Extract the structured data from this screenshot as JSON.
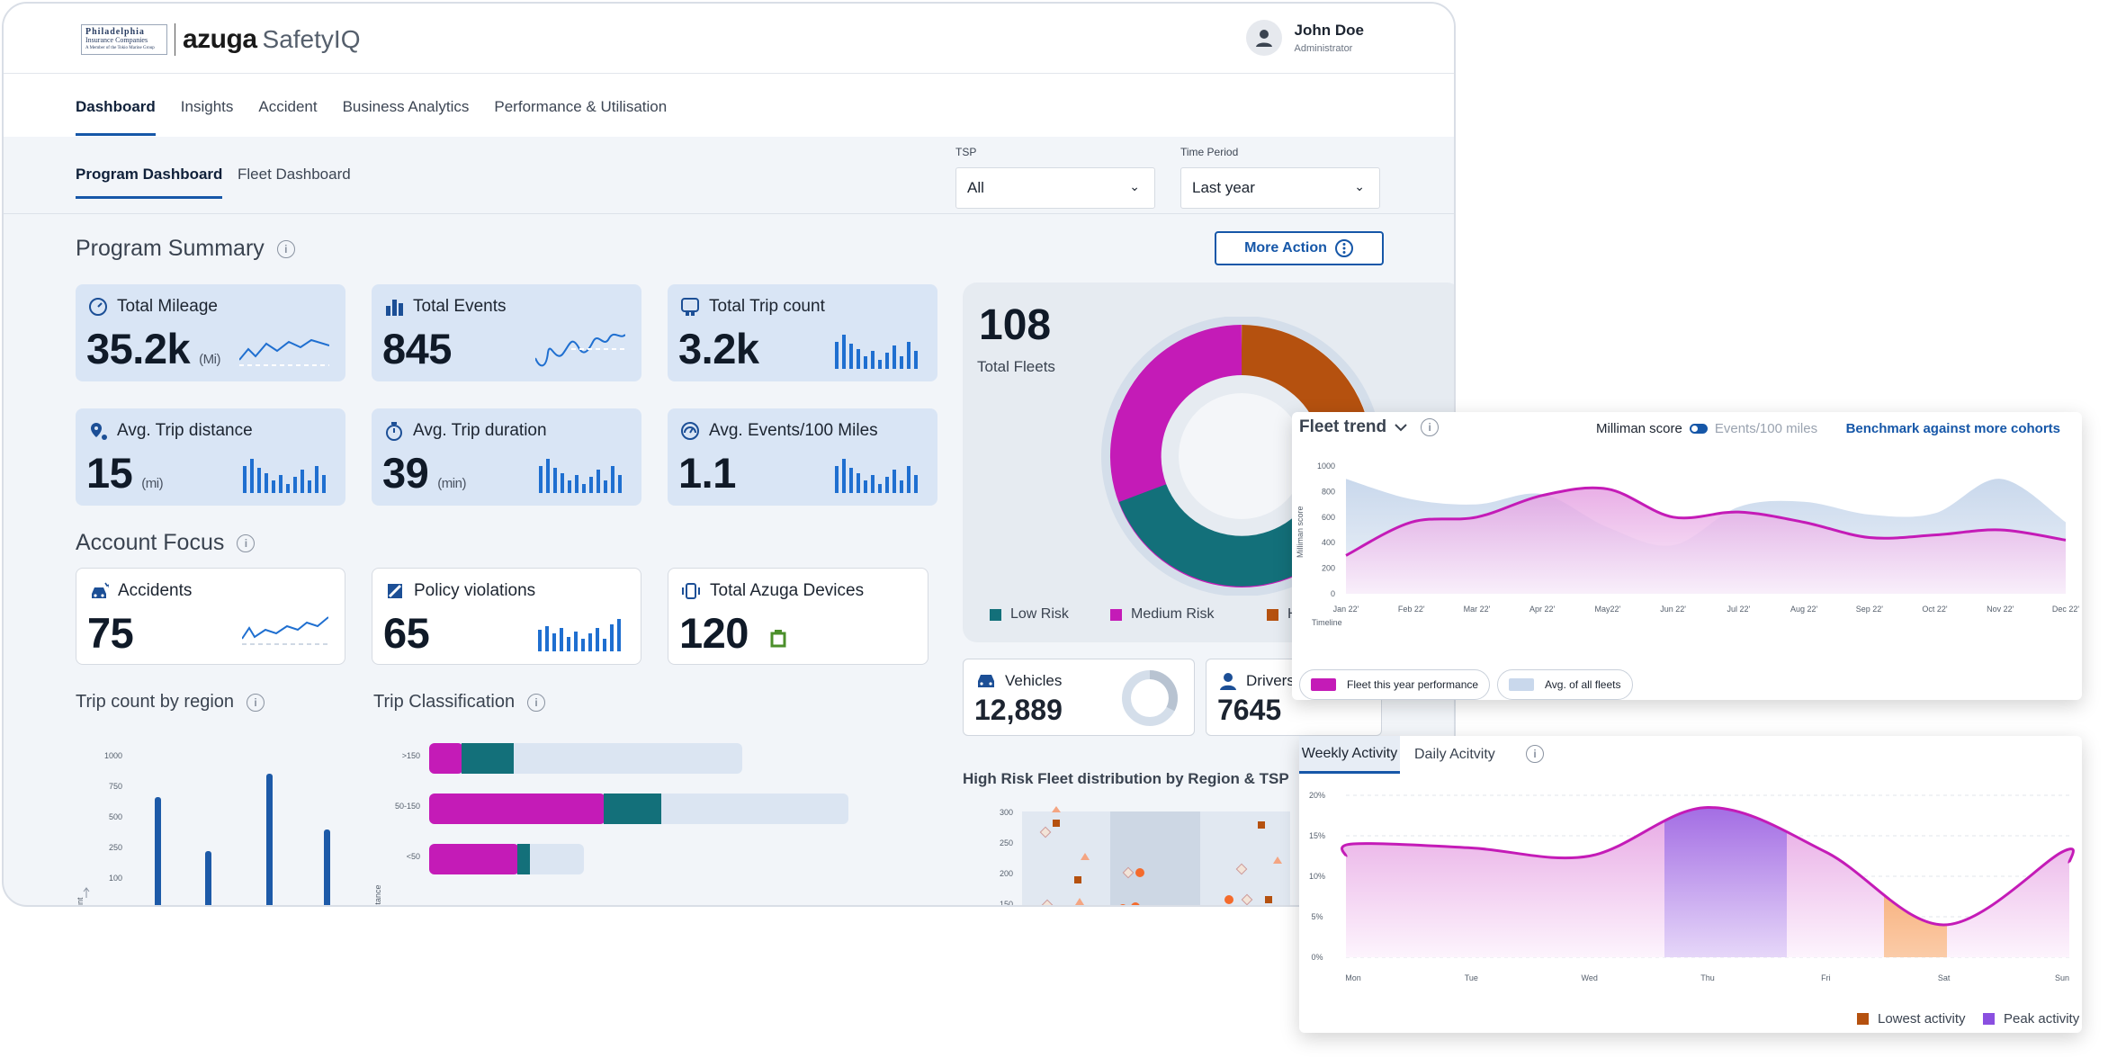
{
  "brand": {
    "partner_line1": "Philadelphia",
    "partner_line2": "Insurance Companies",
    "partner_line3": "A Member of the Tokio Marine Group",
    "azuga": "azuga",
    "product": "SafetyIQ"
  },
  "user": {
    "name": "John Doe",
    "role": "Administrator"
  },
  "main_tabs": [
    "Dashboard",
    "Insights",
    "Accident",
    "Business Analytics",
    "Performance & Utilisation"
  ],
  "sub_tabs": [
    "Program Dashboard",
    "Fleet Dashboard"
  ],
  "filters": {
    "tsp_label": "TSP",
    "tsp_value": "All",
    "period_label": "Time Period",
    "period_value": "Last year"
  },
  "program_summary": {
    "title": "Program Summary",
    "more_action": "More Action",
    "cards": [
      {
        "label": "Total Mileage",
        "value": "35.2k",
        "unit": "(Mi)",
        "icon": "gauge-icon"
      },
      {
        "label": "Total Events",
        "value": "845",
        "unit": "",
        "icon": "bar-chart-icon"
      },
      {
        "label": "Total Trip count",
        "value": "3.2k",
        "unit": "",
        "icon": "trip-icon"
      },
      {
        "label": "Avg. Trip distance",
        "value": "15",
        "unit": "(mi)",
        "icon": "location-pin-icon"
      },
      {
        "label": "Avg. Trip duration",
        "value": "39",
        "unit": "(min)",
        "icon": "stopwatch-icon"
      },
      {
        "label": "Avg. Events/100 Miles",
        "value": "1.1",
        "unit": "",
        "icon": "speedometer-icon"
      }
    ]
  },
  "account_focus": {
    "title": "Account Focus",
    "cards": [
      {
        "label": "Accidents",
        "value": "75",
        "icon": "car-crash-icon"
      },
      {
        "label": "Policy violations",
        "value": "65",
        "icon": "policy-icon"
      },
      {
        "label": "Total Azuga Devices",
        "value": "120",
        "icon": "device-icon"
      }
    ]
  },
  "fleet_risk": {
    "total": "108",
    "total_label": "Total Fleets",
    "legend": [
      "Low Risk",
      "Medium Risk",
      "H"
    ],
    "colors": {
      "low": "#13707a",
      "medium": "#c41bb7",
      "high": "#b5510f"
    }
  },
  "vehicles": {
    "label": "Vehicles",
    "value": "12,889"
  },
  "drivers": {
    "label": "Drivers",
    "value": "7645"
  },
  "trip_region": {
    "title": "Trip count by region",
    "yticks": [
      "1000",
      "750",
      "500",
      "250",
      "100",
      "0"
    ],
    "axis_label": "unt"
  },
  "trip_class": {
    "title": "Trip Classification",
    "cats": [
      ">150",
      "50-150",
      "<50"
    ],
    "axis_label": "stance"
  },
  "high_risk": {
    "title": "High Risk Fleet distribution by Region & TSP",
    "yticks": [
      "300",
      "250",
      "200",
      "150"
    ]
  },
  "fleet_trend": {
    "title": "Fleet trend",
    "toggle_on": "Milliman score",
    "toggle_off": "Events/100 miles",
    "benchmark": "Benchmark against more cohorts",
    "y_label": "Milliman score",
    "x_label": "Timeline",
    "legend_this": "Fleet this year performance",
    "legend_avg": "Avg. of all fleets",
    "chart_data": {
      "type": "line",
      "x": [
        "Jan 22'",
        "Feb 22'",
        "Mar 22'",
        "Apr 22'",
        "May22'",
        "Jun 22'",
        "Jul 22'",
        "Aug 22'",
        "Sep 22'",
        "Oct 22'",
        "Nov 22'",
        "Dec 22'"
      ],
      "yticks": [
        "1000",
        "800",
        "600",
        "400",
        "200",
        "0"
      ],
      "ylim": [
        0,
        1000
      ],
      "series": [
        {
          "name": "Fleet this year performance",
          "values": [
            300,
            560,
            600,
            770,
            820,
            600,
            640,
            560,
            440,
            460,
            500,
            420
          ]
        },
        {
          "name": "Avg. of all fleets",
          "values": [
            900,
            740,
            700,
            780,
            520,
            380,
            680,
            720,
            620,
            630,
            900,
            560
          ]
        }
      ]
    }
  },
  "weekly": {
    "tabs": [
      "Weekly Activity",
      "Daily Acitvity"
    ],
    "legend_low": "Lowest activity",
    "legend_peak": "Peak activity",
    "chart_data": {
      "type": "area",
      "x": [
        "Mon",
        "Tue",
        "Wed",
        "Thu",
        "Fri",
        "Sat",
        "Sun"
      ],
      "yticks": [
        "20%",
        "15%",
        "10%",
        "5%",
        "0%"
      ],
      "ylim": [
        0,
        20
      ],
      "values": [
        14,
        13.5,
        12.5,
        18.5,
        13,
        4,
        13
      ]
    }
  }
}
